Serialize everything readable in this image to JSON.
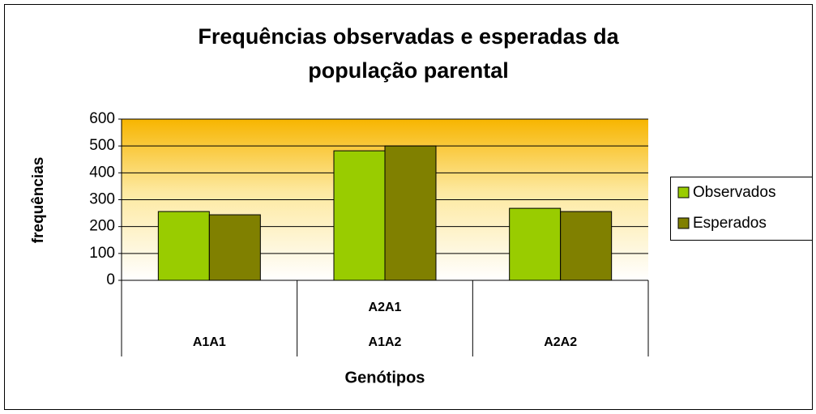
{
  "chart_data": {
    "type": "bar",
    "title": "Frequências observadas e esperadas da população parental",
    "x_label": "Genótipos",
    "y_label": "frequências",
    "categories": [
      "A1A1",
      "A1A2",
      "A2A2"
    ],
    "category_sublabels": [
      null,
      "A2A1",
      null
    ],
    "series": [
      {
        "name": "Observados",
        "color": "#99cc00",
        "values": [
          256,
          482,
          268
        ]
      },
      {
        "name": "Esperados",
        "color": "#808000",
        "values": [
          244,
          500,
          256
        ]
      }
    ],
    "ylim": [
      0,
      600
    ],
    "yticks": [
      0,
      100,
      200,
      300,
      400,
      500,
      600
    ],
    "grid": true,
    "legend": "right"
  }
}
